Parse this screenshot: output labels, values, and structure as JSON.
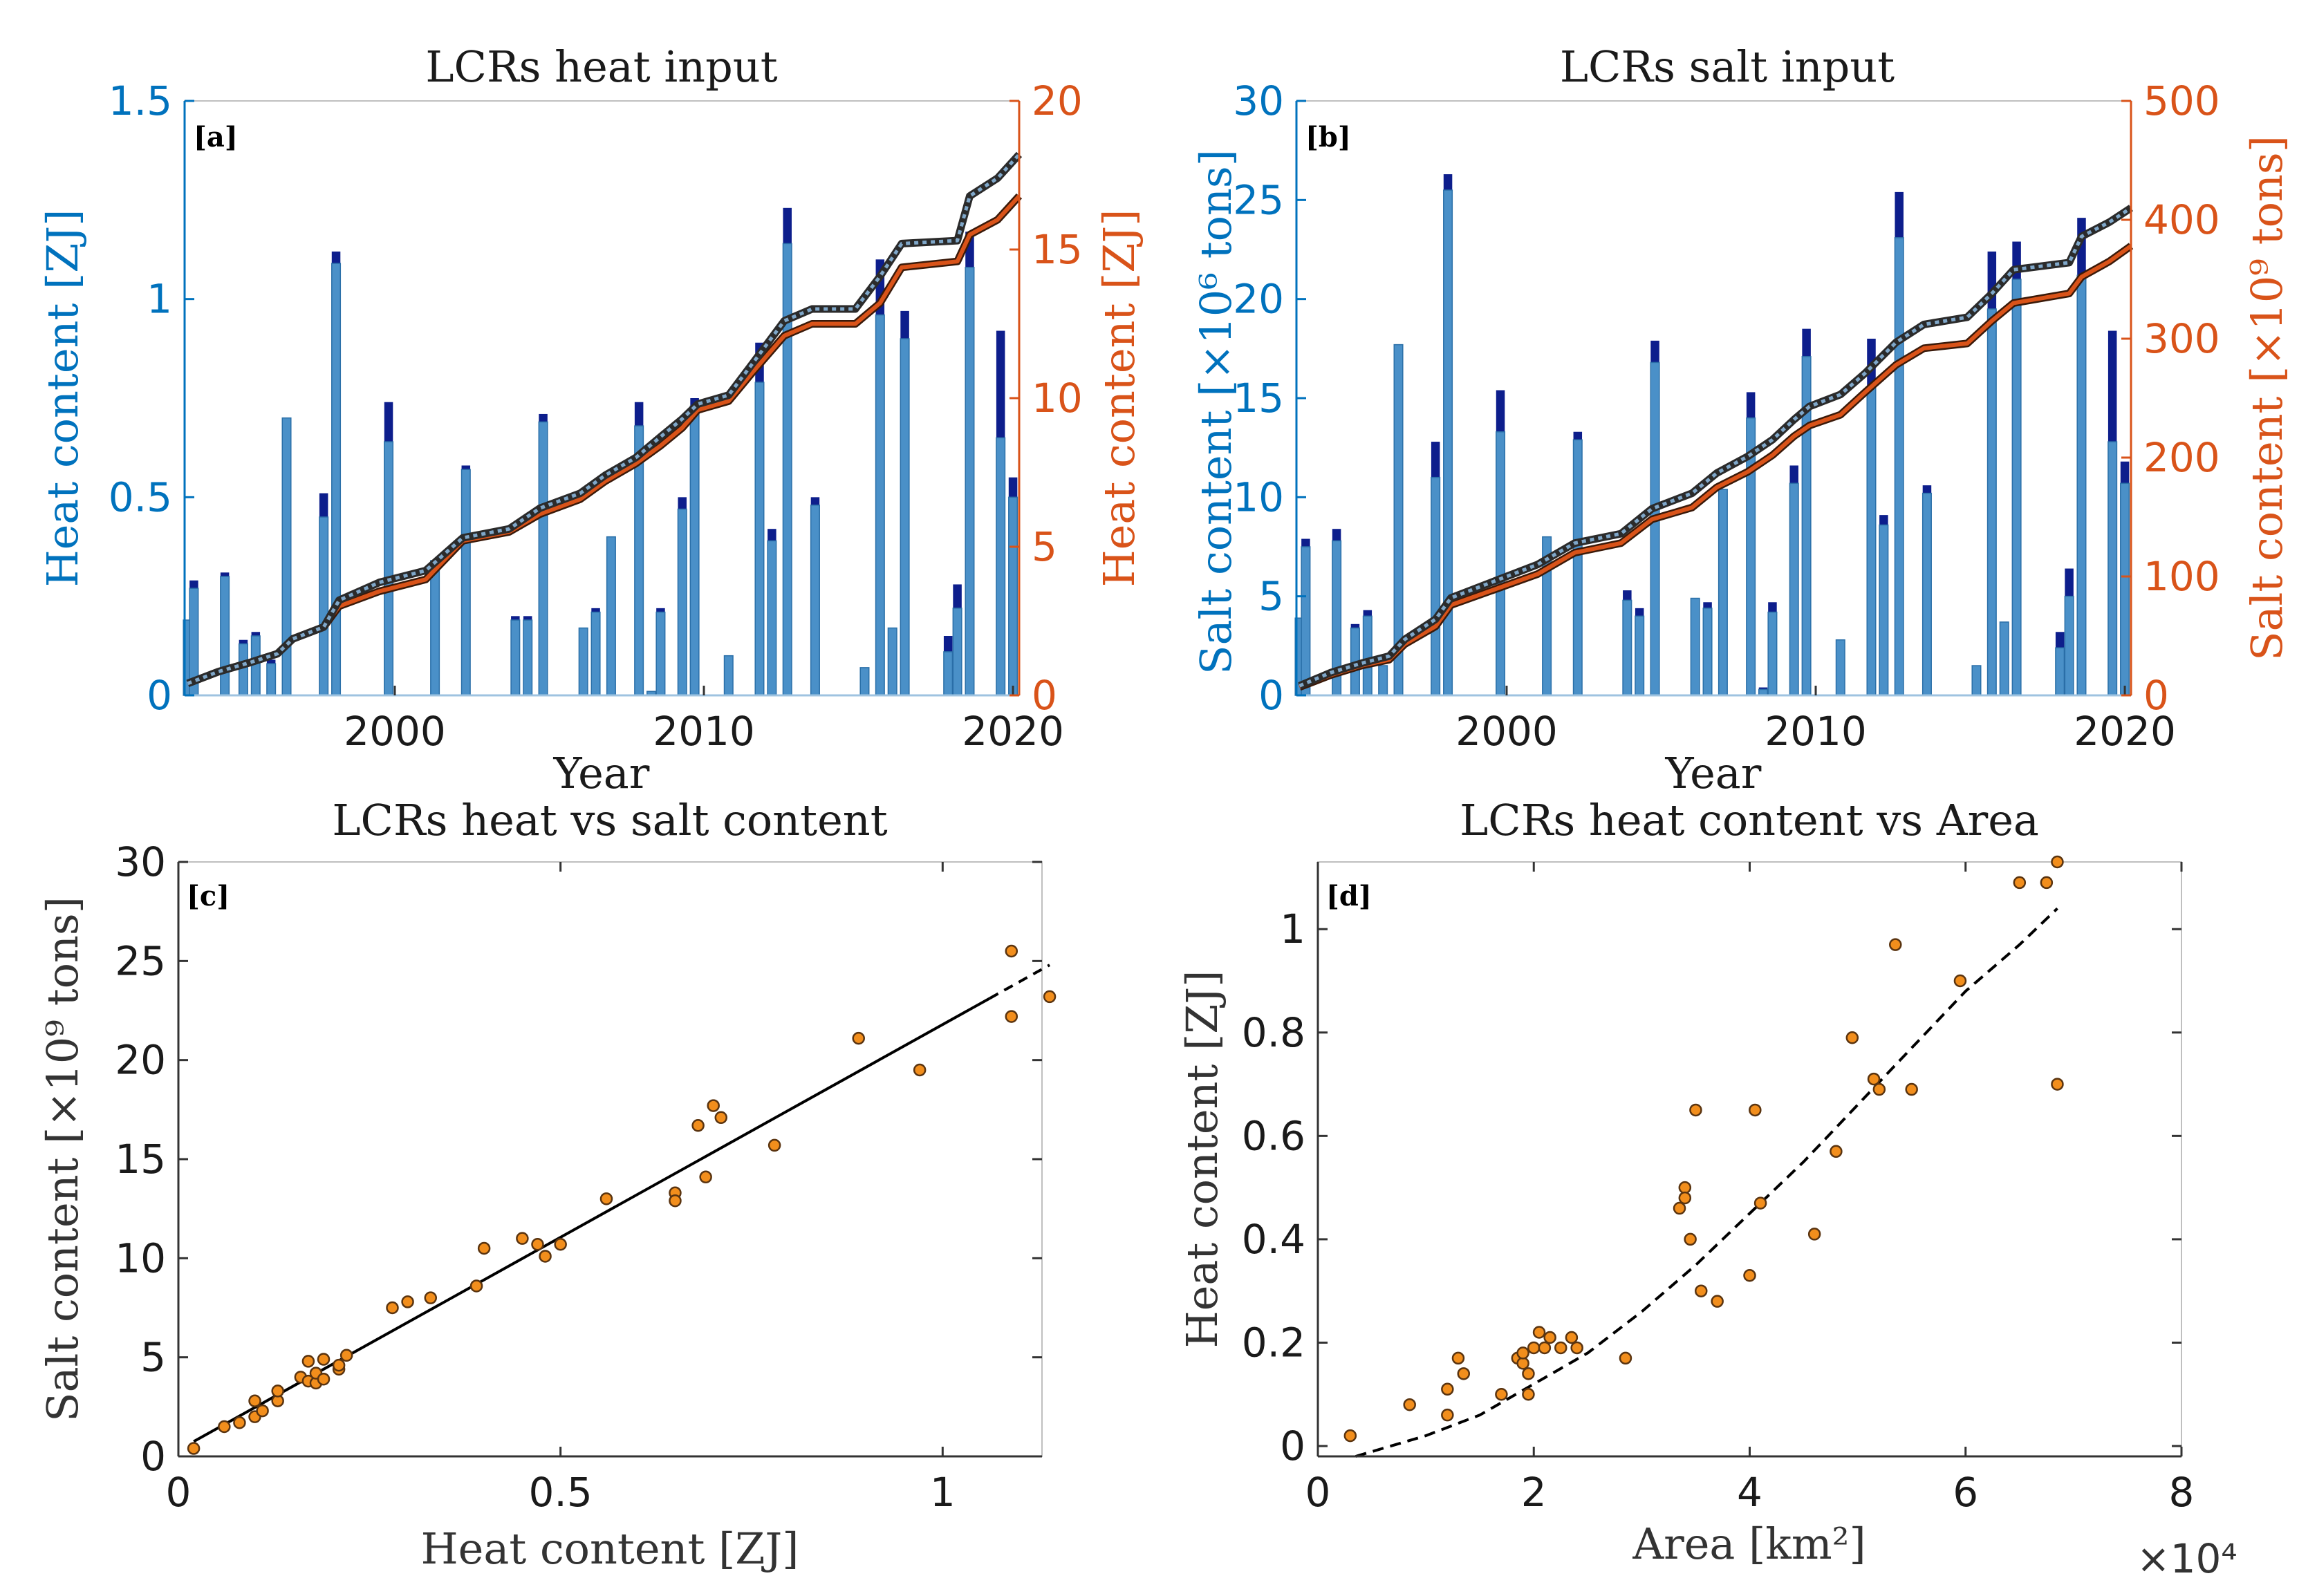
{
  "colors": {
    "left_axis": "#0072BD",
    "right_axis": "#D95319",
    "bar_light": "#4A90C8",
    "bar_dark": "#0D1E8C",
    "scatter": "#F28E1C",
    "black": "#000000"
  },
  "chart_data": [
    {
      "id": "a",
      "type": "bar+line",
      "tag": "[a]",
      "title": "LCRs heat input",
      "xlabel": "Year",
      "ylabel_left": "Heat content [ZJ]",
      "ylabel_right": "Heat content [ZJ]",
      "xlim": [
        1993.2,
        2020.2
      ],
      "ylim_left": [
        0,
        1.5
      ],
      "ylim_right": [
        0,
        20
      ],
      "xticks": [
        2000,
        2010,
        2020
      ],
      "yticks_left": [
        0,
        0.5,
        1,
        1.5
      ],
      "yticks_right": [
        0,
        5,
        10,
        15,
        20
      ],
      "bars": [
        {
          "x": 1993.3,
          "low": 0.19,
          "high": 0.19
        },
        {
          "x": 1993.5,
          "low": 0.27,
          "high": 0.29
        },
        {
          "x": 1994.5,
          "low": 0.3,
          "high": 0.31
        },
        {
          "x": 1995.1,
          "low": 0.13,
          "high": 0.14
        },
        {
          "x": 1995.5,
          "low": 0.15,
          "high": 0.16
        },
        {
          "x": 1996.0,
          "low": 0.08,
          "high": 0.09
        },
        {
          "x": 1996.5,
          "low": 0.7,
          "high": 0.7
        },
        {
          "x": 1997.7,
          "low": 0.45,
          "high": 0.51
        },
        {
          "x": 1998.1,
          "low": 1.09,
          "high": 1.12
        },
        {
          "x": 1999.8,
          "low": 0.64,
          "high": 0.74
        },
        {
          "x": 2001.3,
          "low": 0.34,
          "high": 0.34
        },
        {
          "x": 2002.3,
          "low": 0.57,
          "high": 0.58
        },
        {
          "x": 2003.9,
          "low": 0.19,
          "high": 0.2
        },
        {
          "x": 2004.3,
          "low": 0.19,
          "high": 0.2
        },
        {
          "x": 2004.8,
          "low": 0.69,
          "high": 0.71
        },
        {
          "x": 2006.1,
          "low": 0.17,
          "high": 0.17
        },
        {
          "x": 2006.5,
          "low": 0.21,
          "high": 0.22
        },
        {
          "x": 2007.0,
          "low": 0.4,
          "high": 0.4
        },
        {
          "x": 2007.9,
          "low": 0.68,
          "high": 0.74
        },
        {
          "x": 2008.3,
          "low": 0.01,
          "high": 0.01
        },
        {
          "x": 2008.6,
          "low": 0.21,
          "high": 0.22
        },
        {
          "x": 2009.3,
          "low": 0.47,
          "high": 0.5
        },
        {
          "x": 2009.7,
          "low": 0.73,
          "high": 0.75
        },
        {
          "x": 2010.8,
          "low": 0.1,
          "high": 0.1
        },
        {
          "x": 2011.8,
          "low": 0.79,
          "high": 0.89
        },
        {
          "x": 2012.2,
          "low": 0.39,
          "high": 0.42
        },
        {
          "x": 2012.7,
          "low": 1.14,
          "high": 1.23
        },
        {
          "x": 2013.6,
          "low": 0.48,
          "high": 0.5
        },
        {
          "x": 2015.2,
          "low": 0.07,
          "high": 0.07
        },
        {
          "x": 2015.7,
          "low": 0.96,
          "high": 1.1
        },
        {
          "x": 2016.1,
          "low": 0.17,
          "high": 0.17
        },
        {
          "x": 2016.5,
          "low": 0.9,
          "high": 0.97
        },
        {
          "x": 2017.9,
          "low": 0.11,
          "high": 0.15
        },
        {
          "x": 2018.2,
          "low": 0.22,
          "high": 0.28
        },
        {
          "x": 2018.6,
          "low": 1.08,
          "high": 1.17
        },
        {
          "x": 2019.6,
          "low": 0.65,
          "high": 0.92
        },
        {
          "x": 2020.0,
          "low": 0.5,
          "high": 0.55
        }
      ],
      "cumulative": {
        "x": [
          1993.3,
          1994.3,
          1995.3,
          1996.2,
          1996.7,
          1997.7,
          1998.2,
          1999.5,
          2001.0,
          2002.2,
          2003.7,
          2004.7,
          2006.0,
          2006.8,
          2007.8,
          2008.6,
          2009.3,
          2009.8,
          2010.8,
          2011.6,
          2012.6,
          2013.5,
          2014.9,
          2015.7,
          2016.4,
          2018.2,
          2018.6,
          2019.5,
          2020.2
        ],
        "low": [
          0.4,
          0.8,
          1.1,
          1.4,
          1.9,
          2.3,
          3.0,
          3.5,
          3.9,
          5.2,
          5.5,
          6.1,
          6.6,
          7.2,
          7.8,
          8.4,
          9.0,
          9.6,
          9.9,
          10.9,
          12.1,
          12.5,
          12.5,
          13.2,
          14.4,
          14.6,
          15.5,
          16.0,
          16.8
        ],
        "high": [
          0.4,
          0.8,
          1.1,
          1.4,
          1.9,
          2.3,
          3.2,
          3.8,
          4.2,
          5.3,
          5.6,
          6.3,
          6.8,
          7.4,
          8.0,
          8.7,
          9.3,
          9.8,
          10.1,
          11.2,
          12.6,
          13.0,
          13.0,
          14.1,
          15.2,
          15.3,
          16.8,
          17.4,
          18.2
        ]
      }
    },
    {
      "id": "b",
      "type": "bar+line",
      "tag": "[b]",
      "title": "LCRs salt input",
      "xlabel": "Year",
      "ylabel_left": "Salt content [×10⁶ tons]",
      "ylabel_right": "Salt content [×10⁹ tons]",
      "xlim": [
        1993.2,
        2020.2
      ],
      "ylim_left": [
        0,
        30
      ],
      "ylim_right": [
        0,
        500
      ],
      "xticks": [
        2000,
        2010,
        2020
      ],
      "yticks_left": [
        0,
        5,
        10,
        15,
        20,
        25,
        30
      ],
      "yticks_right": [
        0,
        100,
        200,
        300,
        400,
        500
      ],
      "bars": [
        {
          "x": 1993.3,
          "low": 3.9,
          "high": 3.9
        },
        {
          "x": 1993.5,
          "low": 7.5,
          "high": 7.9
        },
        {
          "x": 1994.5,
          "low": 7.8,
          "high": 8.4
        },
        {
          "x": 1995.1,
          "low": 3.4,
          "high": 3.6
        },
        {
          "x": 1995.5,
          "low": 4.0,
          "high": 4.3
        },
        {
          "x": 1996.0,
          "low": 1.5,
          "high": 1.5
        },
        {
          "x": 1996.5,
          "low": 17.7,
          "high": 17.7
        },
        {
          "x": 1997.7,
          "low": 11.0,
          "high": 12.8
        },
        {
          "x": 1998.1,
          "low": 25.5,
          "high": 26.3
        },
        {
          "x": 1999.8,
          "low": 13.3,
          "high": 15.4
        },
        {
          "x": 2001.3,
          "low": 8.0,
          "high": 8.0
        },
        {
          "x": 2002.3,
          "low": 12.9,
          "high": 13.3
        },
        {
          "x": 2003.9,
          "low": 4.8,
          "high": 5.3
        },
        {
          "x": 2004.3,
          "low": 4.0,
          "high": 4.4
        },
        {
          "x": 2004.8,
          "low": 16.8,
          "high": 17.9
        },
        {
          "x": 2006.1,
          "low": 4.9,
          "high": 4.9
        },
        {
          "x": 2006.5,
          "low": 4.4,
          "high": 4.7
        },
        {
          "x": 2007.0,
          "low": 10.4,
          "high": 10.4
        },
        {
          "x": 2007.9,
          "low": 14.0,
          "high": 15.3
        },
        {
          "x": 2008.3,
          "low": 0.3,
          "high": 0.4
        },
        {
          "x": 2008.6,
          "low": 4.2,
          "high": 4.7
        },
        {
          "x": 2009.3,
          "low": 10.7,
          "high": 11.6
        },
        {
          "x": 2009.7,
          "low": 17.1,
          "high": 18.5
        },
        {
          "x": 2010.8,
          "low": 2.8,
          "high": 2.8
        },
        {
          "x": 2011.8,
          "low": 15.6,
          "high": 18.0
        },
        {
          "x": 2012.2,
          "low": 8.6,
          "high": 9.1
        },
        {
          "x": 2012.7,
          "low": 23.1,
          "high": 25.4
        },
        {
          "x": 2013.6,
          "low": 10.2,
          "high": 10.6
        },
        {
          "x": 2015.2,
          "low": 1.5,
          "high": 1.5
        },
        {
          "x": 2015.7,
          "low": 19.5,
          "high": 22.4
        },
        {
          "x": 2016.1,
          "low": 3.7,
          "high": 3.7
        },
        {
          "x": 2016.5,
          "low": 21.0,
          "high": 22.9
        },
        {
          "x": 2017.9,
          "low": 2.4,
          "high": 3.2
        },
        {
          "x": 2018.2,
          "low": 5.0,
          "high": 6.4
        },
        {
          "x": 2018.6,
          "low": 21.2,
          "high": 24.1
        },
        {
          "x": 2019.6,
          "low": 12.8,
          "high": 18.4
        },
        {
          "x": 2020.0,
          "low": 10.7,
          "high": 11.8
        }
      ],
      "cumulative": {
        "x": [
          1993.3,
          1994.3,
          1995.3,
          1996.2,
          1996.7,
          1997.7,
          1998.2,
          1999.5,
          2001.0,
          2002.2,
          2003.7,
          2004.7,
          2006.0,
          2006.8,
          2007.8,
          2008.6,
          2009.3,
          2009.8,
          2010.8,
          2011.6,
          2012.6,
          2013.5,
          2014.9,
          2015.7,
          2016.4,
          2018.2,
          2018.6,
          2019.5,
          2020.2
        ],
        "low": [
          7,
          17,
          25,
          30,
          43,
          58,
          76,
          88,
          102,
          120,
          128,
          148,
          158,
          175,
          188,
          202,
          218,
          227,
          236,
          255,
          278,
          292,
          296,
          315,
          330,
          338,
          352,
          365,
          378
        ],
        "high": [
          8,
          19,
          27,
          33,
          47,
          64,
          82,
          95,
          110,
          128,
          136,
          157,
          170,
          187,
          201,
          215,
          232,
          243,
          253,
          271,
          297,
          312,
          318,
          338,
          358,
          364,
          386,
          398,
          410
        ]
      }
    },
    {
      "id": "c",
      "type": "scatter",
      "tag": "[c]",
      "title": "LCRs heat vs salt content",
      "xlabel": "Heat content [ZJ]",
      "ylabel": "Salt content [×10⁹ tons]",
      "xlim": [
        0,
        1.13
      ],
      "ylim": [
        0,
        30
      ],
      "xticks": [
        0,
        0.5,
        1
      ],
      "yticks": [
        0,
        5,
        10,
        15,
        20,
        25,
        30
      ],
      "points": [
        [
          0.02,
          0.4
        ],
        [
          0.06,
          1.5
        ],
        [
          0.08,
          1.7
        ],
        [
          0.1,
          2.0
        ],
        [
          0.1,
          2.8
        ],
        [
          0.11,
          2.3
        ],
        [
          0.13,
          2.8
        ],
        [
          0.13,
          3.3
        ],
        [
          0.16,
          4.0
        ],
        [
          0.17,
          4.8
        ],
        [
          0.17,
          3.8
        ],
        [
          0.18,
          3.7
        ],
        [
          0.18,
          4.2
        ],
        [
          0.19,
          4.9
        ],
        [
          0.19,
          3.9
        ],
        [
          0.21,
          4.4
        ],
        [
          0.21,
          4.6
        ],
        [
          0.22,
          5.1
        ],
        [
          0.28,
          7.5
        ],
        [
          0.3,
          7.8
        ],
        [
          0.33,
          8.0
        ],
        [
          0.39,
          8.6
        ],
        [
          0.4,
          10.5
        ],
        [
          0.45,
          11.0
        ],
        [
          0.47,
          10.7
        ],
        [
          0.48,
          10.1
        ],
        [
          0.5,
          10.7
        ],
        [
          0.56,
          13.0
        ],
        [
          0.65,
          13.3
        ],
        [
          0.65,
          12.9
        ],
        [
          0.68,
          16.7
        ],
        [
          0.69,
          14.1
        ],
        [
          0.7,
          17.7
        ],
        [
          0.71,
          17.1
        ],
        [
          0.78,
          15.7
        ],
        [
          0.89,
          21.1
        ],
        [
          0.97,
          19.5
        ],
        [
          1.09,
          22.2
        ],
        [
          1.09,
          25.5
        ],
        [
          1.14,
          23.2
        ]
      ],
      "fit": {
        "x": [
          0.02,
          1.14
        ],
        "y": [
          0.75,
          24.8
        ],
        "style": "solid-then-dashed"
      }
    },
    {
      "id": "d",
      "type": "scatter",
      "tag": "[d]",
      "title": "LCRs heat content vs Area",
      "xlabel": "Area [km²]",
      "ylabel": "Heat content [ZJ]",
      "x_multiplier": "×10⁴",
      "xlim": [
        0,
        8
      ],
      "ylim": [
        -0.02,
        1.13
      ],
      "xticks": [
        0,
        2,
        4,
        6,
        8
      ],
      "yticks": [
        0,
        0.2,
        0.4,
        0.6,
        0.8,
        1
      ],
      "points": [
        [
          0.3,
          0.02
        ],
        [
          0.85,
          0.08
        ],
        [
          1.2,
          0.06
        ],
        [
          1.2,
          0.11
        ],
        [
          1.3,
          0.17
        ],
        [
          1.35,
          0.14
        ],
        [
          1.7,
          0.1
        ],
        [
          1.85,
          0.17
        ],
        [
          1.9,
          0.16
        ],
        [
          1.9,
          0.18
        ],
        [
          1.95,
          0.1
        ],
        [
          1.95,
          0.14
        ],
        [
          2.0,
          0.19
        ],
        [
          2.05,
          0.22
        ],
        [
          2.1,
          0.19
        ],
        [
          2.15,
          0.21
        ],
        [
          2.25,
          0.19
        ],
        [
          2.35,
          0.21
        ],
        [
          2.4,
          0.19
        ],
        [
          2.85,
          0.17
        ],
        [
          3.35,
          0.46
        ],
        [
          3.4,
          0.5
        ],
        [
          3.4,
          0.48
        ],
        [
          3.45,
          0.4
        ],
        [
          3.5,
          0.65
        ],
        [
          3.55,
          0.3
        ],
        [
          3.7,
          0.28
        ],
        [
          4.0,
          0.33
        ],
        [
          4.05,
          0.65
        ],
        [
          4.1,
          0.47
        ],
        [
          4.6,
          0.41
        ],
        [
          4.8,
          0.57
        ],
        [
          4.95,
          0.79
        ],
        [
          5.15,
          0.71
        ],
        [
          5.2,
          0.69
        ],
        [
          5.35,
          0.97
        ],
        [
          5.5,
          0.69
        ],
        [
          5.95,
          0.9
        ],
        [
          6.5,
          1.09
        ],
        [
          6.75,
          1.09
        ],
        [
          6.85,
          1.13
        ],
        [
          6.85,
          0.7
        ]
      ],
      "fit_curve": {
        "x": [
          0.35,
          1.0,
          1.5,
          2.0,
          2.5,
          3.0,
          3.5,
          4.0,
          4.5,
          5.0,
          5.5,
          6.0,
          6.5,
          6.85
        ],
        "y": [
          -0.02,
          0.02,
          0.06,
          0.12,
          0.18,
          0.26,
          0.35,
          0.45,
          0.55,
          0.66,
          0.77,
          0.88,
          0.97,
          1.04
        ]
      }
    }
  ]
}
